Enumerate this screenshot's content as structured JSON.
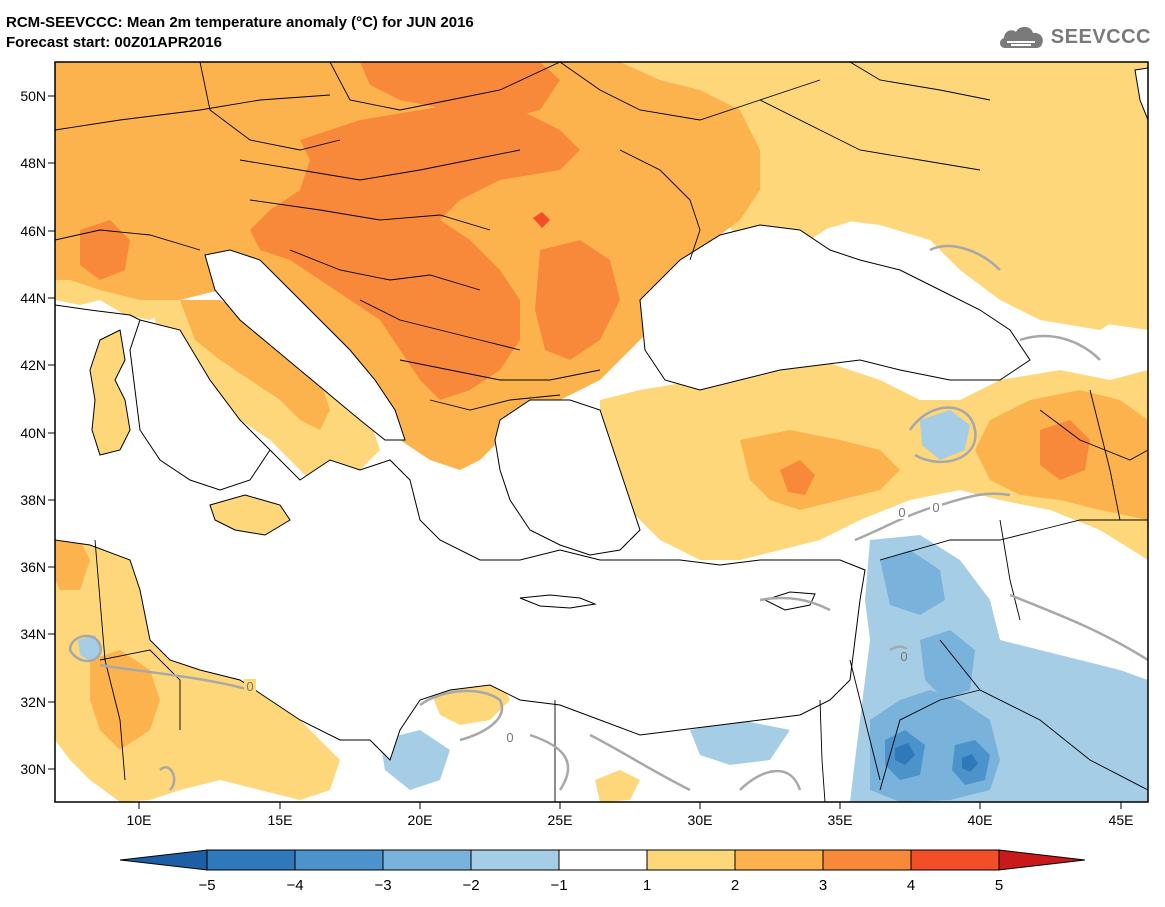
{
  "header": {
    "title": "RCM-SEEVCCC: Mean 2m temperature anomaly (°C) for JUN 2016",
    "subtitle": "Forecast start: 00Z01APR2016",
    "logo_text": "SEEVCCC"
  },
  "map": {
    "lon_range": [
      7,
      46
    ],
    "lat_range": [
      29,
      51
    ],
    "lat_ticks": [
      "50N",
      "48N",
      "46N",
      "44N",
      "42N",
      "40N",
      "38N",
      "36N",
      "34N",
      "32N",
      "30N"
    ],
    "lon_ticks": [
      "10E",
      "15E",
      "20E",
      "25E",
      "30E",
      "35E",
      "40E",
      "45E"
    ],
    "contour_label": "0",
    "sea_color": "#ffffff",
    "land_outline_color": "#000000",
    "contour_color": "#a8a8a8"
  },
  "colorbar": {
    "labels": [
      "−5",
      "−4",
      "−3",
      "−2",
      "−1",
      "1",
      "2",
      "3",
      "4",
      "5"
    ],
    "colors": [
      "#1d5fa4",
      "#2f78b9",
      "#4c93cc",
      "#79b2db",
      "#a5cde6",
      "#ffffff",
      "#fdd77a",
      "#fcb34e",
      "#f8893a",
      "#f24e28",
      "#c81a1a"
    ]
  }
}
